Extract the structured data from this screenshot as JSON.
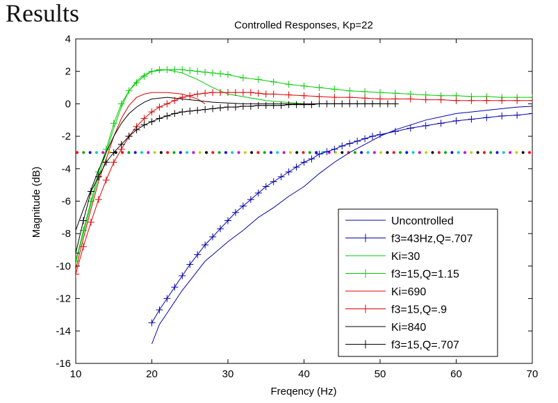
{
  "slide": {
    "title": "Results"
  },
  "chart_data": {
    "type": "line",
    "title": "Controlled Responses,  Kp=22",
    "xlabel": "Freqency (Hz)",
    "ylabel": "Magnitude (dB)",
    "xlim": [
      10,
      70
    ],
    "ylim": [
      -16,
      4
    ],
    "xticks": [
      10,
      20,
      30,
      40,
      50,
      60,
      70
    ],
    "yticks": [
      4,
      2,
      0,
      -2,
      -4,
      -6,
      -8,
      -10,
      -12,
      -14,
      -16
    ],
    "grid": false,
    "legend_position": "bottom-right",
    "reference_line": {
      "y": -3,
      "style": "dotted-multicolor",
      "colors": [
        "#ff0000",
        "#00aa00",
        "#0000ff",
        "#00cccc",
        "#cc00cc",
        "#cccc00",
        "#000000"
      ]
    },
    "series": [
      {
        "name": "Uncontrolled",
        "color": "#0000aa",
        "marker": "none",
        "x": [
          20,
          21,
          22,
          23,
          24,
          25,
          26,
          27,
          28,
          30,
          32,
          34,
          36,
          38,
          40,
          42,
          44,
          46,
          48,
          50,
          52,
          54,
          56,
          58,
          60,
          62,
          64,
          66,
          68,
          70
        ],
        "y": [
          -14.8,
          -13.6,
          -12.9,
          -12.2,
          -11.5,
          -10.9,
          -10.3,
          -9.7,
          -9.3,
          -8.5,
          -7.8,
          -7.0,
          -6.4,
          -5.7,
          -5.1,
          -4.3,
          -3.6,
          -3.0,
          -2.5,
          -2.0,
          -1.6,
          -1.3,
          -1.0,
          -0.8,
          -0.6,
          -0.5,
          -0.4,
          -0.3,
          -0.2,
          -0.15
        ]
      },
      {
        "name": "f3=43Hz,Q=.707",
        "color": "#0000aa",
        "marker": "plus",
        "x": [
          20,
          21,
          22,
          23,
          24,
          25,
          26,
          27,
          28,
          29,
          30,
          31,
          32,
          33,
          34,
          35,
          36,
          37,
          38,
          39,
          40,
          41,
          42,
          43,
          44,
          45,
          46,
          47,
          48,
          49,
          50,
          52,
          54,
          56,
          58,
          60,
          62,
          64,
          66,
          68,
          70
        ],
        "y": [
          -13.5,
          -12.7,
          -12.0,
          -11.3,
          -10.6,
          -9.9,
          -9.3,
          -8.7,
          -8.2,
          -7.7,
          -7.2,
          -6.7,
          -6.3,
          -5.9,
          -5.5,
          -5.1,
          -4.8,
          -4.5,
          -4.2,
          -3.9,
          -3.6,
          -3.4,
          -3.1,
          -2.95,
          -2.8,
          -2.6,
          -2.45,
          -2.3,
          -2.15,
          -2.0,
          -1.9,
          -1.7,
          -1.5,
          -1.35,
          -1.2,
          -1.05,
          -0.95,
          -0.85,
          -0.75,
          -0.7,
          -0.6
        ]
      },
      {
        "name": "Ki=30",
        "color": "#00cc00",
        "marker": "none",
        "x": [
          10,
          11,
          12,
          13,
          14,
          15,
          16,
          17,
          18,
          19,
          20,
          22,
          24,
          26,
          28,
          30,
          35,
          40
        ],
        "y": [
          -9.8,
          -8.0,
          -6.2,
          -4.5,
          -3.0,
          -1.5,
          -0.2,
          0.8,
          1.4,
          1.8,
          2.0,
          2.1,
          1.9,
          1.5,
          1.0,
          0.6,
          0.2,
          0.0
        ]
      },
      {
        "name": "f3=15,Q=1.15",
        "color": "#00cc00",
        "marker": "plus",
        "x": [
          10,
          11,
          12,
          13,
          14,
          15,
          16,
          17,
          18,
          19,
          20,
          21,
          22,
          23,
          24,
          25,
          26,
          27,
          28,
          29,
          30,
          32,
          34,
          36,
          38,
          40,
          42,
          44,
          46,
          48,
          50,
          52,
          54,
          56,
          58,
          60,
          62,
          64,
          66,
          68,
          70
        ],
        "y": [
          -9.7,
          -7.8,
          -6.0,
          -4.2,
          -2.8,
          -1.2,
          0.0,
          0.8,
          1.3,
          1.7,
          2.0,
          2.1,
          2.1,
          2.1,
          2.1,
          2.05,
          2.0,
          1.95,
          1.9,
          1.85,
          1.8,
          1.6,
          1.5,
          1.35,
          1.2,
          1.1,
          1.0,
          0.9,
          0.8,
          0.75,
          0.7,
          0.65,
          0.6,
          0.55,
          0.5,
          0.5,
          0.45,
          0.45,
          0.4,
          0.4,
          0.4
        ]
      },
      {
        "name": "Ki=690",
        "color": "#dd0000",
        "marker": "none",
        "x": [
          10,
          11,
          12,
          13,
          14,
          15,
          16,
          17,
          18,
          19,
          20,
          22,
          24,
          26,
          27
        ],
        "y": [
          -10.2,
          -8.3,
          -6.5,
          -4.8,
          -3.4,
          -2.0,
          -0.9,
          -0.1,
          0.4,
          0.6,
          0.7,
          0.7,
          0.6,
          0.3,
          0.0
        ]
      },
      {
        "name": "f3=15,Q=.9",
        "color": "#dd0000",
        "marker": "plus",
        "x": [
          10,
          11,
          12,
          13,
          14,
          15,
          16,
          17,
          18,
          19,
          20,
          21,
          22,
          23,
          24,
          25,
          26,
          27,
          28,
          29,
          30,
          31,
          32,
          33,
          34,
          35,
          36,
          38,
          40,
          42,
          44,
          46,
          48,
          50,
          52,
          54,
          56,
          58,
          60,
          62,
          64,
          66,
          68,
          70
        ],
        "y": [
          -10.5,
          -8.8,
          -7.3,
          -5.9,
          -4.7,
          -3.6,
          -2.8,
          -2.0,
          -1.4,
          -0.9,
          -0.5,
          -0.2,
          0.0,
          0.2,
          0.4,
          0.5,
          0.6,
          0.65,
          0.7,
          0.7,
          0.7,
          0.7,
          0.7,
          0.7,
          0.65,
          0.6,
          0.6,
          0.55,
          0.5,
          0.45,
          0.4,
          0.4,
          0.35,
          0.3,
          0.3,
          0.3,
          0.25,
          0.25,
          0.2,
          0.2,
          0.2,
          0.2,
          0.2,
          0.2
        ]
      },
      {
        "name": "Ki=840",
        "color": "#000000",
        "marker": "none",
        "x": [
          10,
          11,
          12,
          13,
          14,
          15,
          16,
          17,
          18,
          19,
          20,
          22,
          24,
          26,
          28,
          30,
          32,
          35,
          40,
          45,
          50
        ],
        "y": [
          -7.8,
          -6.5,
          -5.3,
          -4.1,
          -3.0,
          -2.0,
          -1.2,
          -0.6,
          -0.2,
          0.1,
          0.3,
          0.4,
          0.3,
          0.2,
          0.1,
          0.05,
          0.0,
          0.0,
          0.0,
          0.0,
          0.0
        ]
      },
      {
        "name": "f3=15,Q=.707",
        "color": "#000000",
        "marker": "plus",
        "x": [
          10,
          11,
          12,
          13,
          14,
          15,
          16,
          17,
          18,
          19,
          20,
          21,
          22,
          23,
          24,
          25,
          26,
          27,
          28,
          29,
          30,
          31,
          32,
          33,
          34,
          35,
          36,
          37,
          38,
          39,
          40,
          41,
          42,
          43,
          44,
          45,
          46,
          47,
          48,
          49,
          50,
          51,
          52
        ],
        "y": [
          -9.2,
          -7.2,
          -5.4,
          -4.5,
          -3.6,
          -3.0,
          -2.5,
          -2.0,
          -1.6,
          -1.3,
          -1.1,
          -0.9,
          -0.75,
          -0.6,
          -0.5,
          -0.45,
          -0.4,
          -0.35,
          -0.3,
          -0.25,
          -0.2,
          -0.2,
          -0.15,
          -0.15,
          -0.1,
          -0.1,
          -0.1,
          -0.1,
          -0.05,
          -0.05,
          -0.05,
          -0.05,
          0.0,
          0.0,
          0.0,
          0.0,
          0.0,
          0.0,
          0.0,
          0.0,
          0.0,
          0.0,
          0.0
        ]
      }
    ]
  }
}
